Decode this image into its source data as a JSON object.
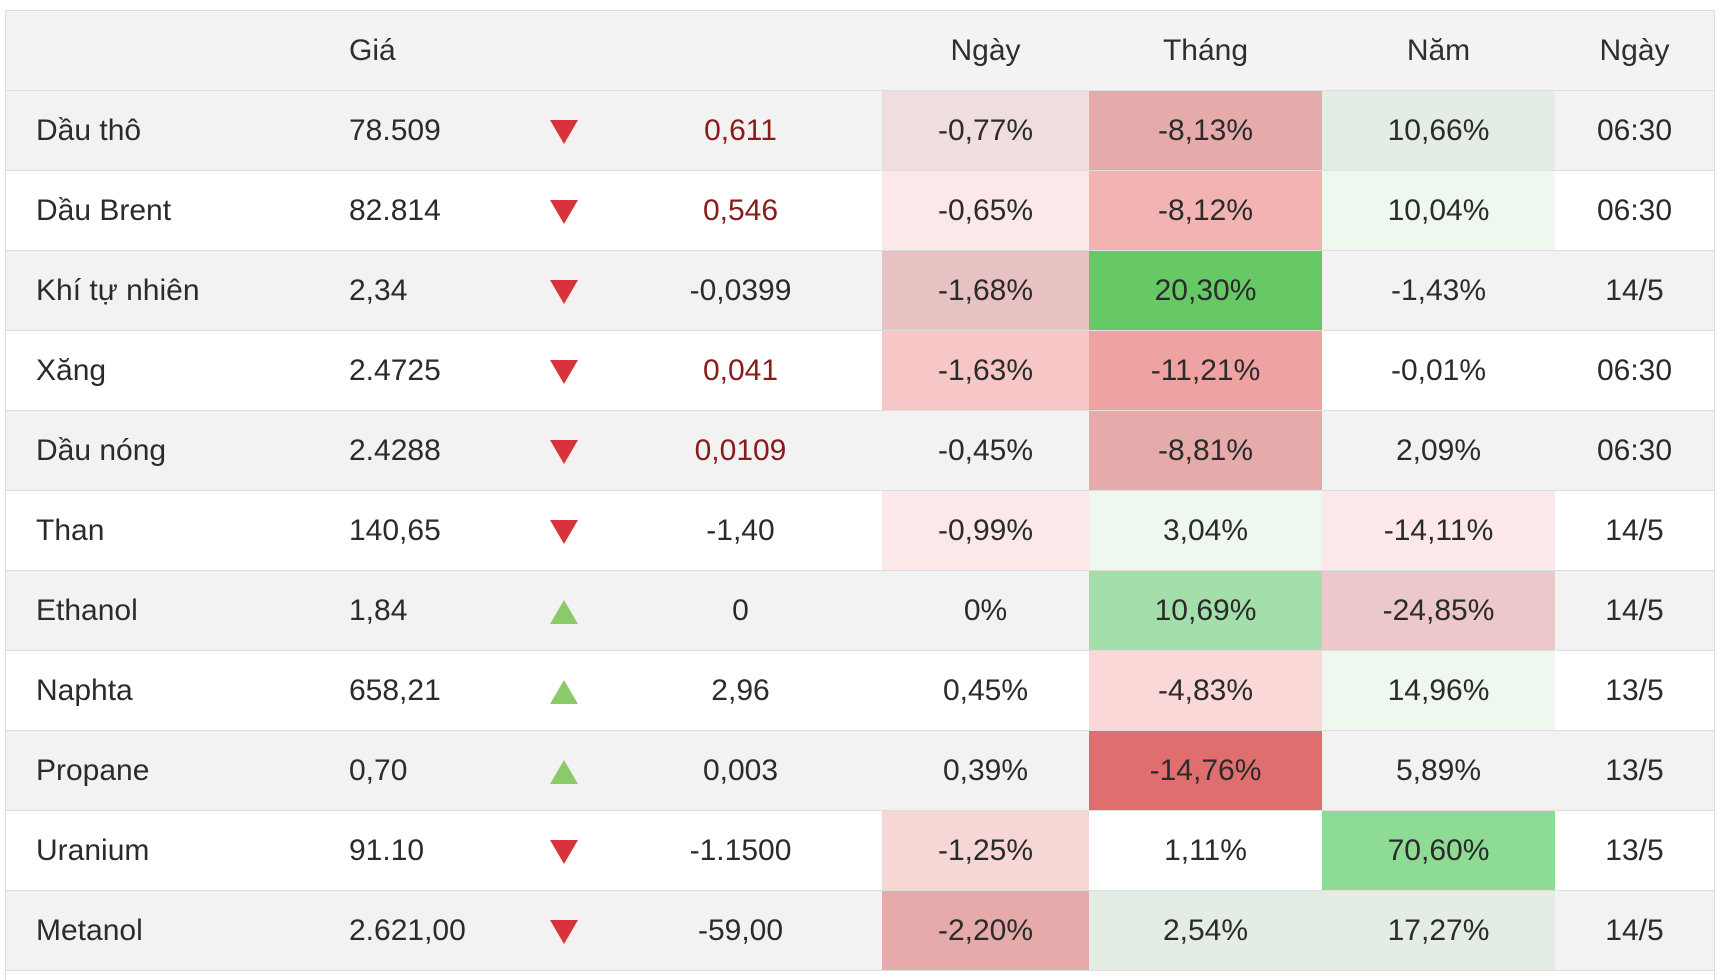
{
  "columns": {
    "name": "",
    "price": "Giá",
    "arrow": "",
    "change": "",
    "day": "Ngày",
    "month": "Tháng",
    "year": "Năm",
    "time": "Ngày"
  },
  "colors": {
    "down_arrow": "#d9323a",
    "up_arrow": "#8cc96a",
    "negative_change_text": "#8b1a1a"
  },
  "rows": [
    {
      "name": "Dầu thô",
      "price": "78.509",
      "direction": "down-arrow-icon",
      "change": "0,611",
      "change_negative_color": true,
      "day": "-0,77%",
      "day_bg": "#f0dede",
      "month": "-8,13%",
      "month_bg": "#e6aaaa",
      "year": "10,66%",
      "year_bg": "#e3ede3",
      "time": "06:30"
    },
    {
      "name": "Dầu Brent",
      "price": "82.814",
      "direction": "down-arrow-icon",
      "change": "0,546",
      "change_negative_color": true,
      "day": "-0,65%",
      "day_bg": "#fce8e8",
      "month": "-8,12%",
      "month_bg": "#f3b3b3",
      "year": "10,04%",
      "year_bg": "#eef8ee",
      "time": "06:30"
    },
    {
      "name": "Khí tự nhiên",
      "price": "2,34",
      "direction": "down-arrow-icon",
      "change": "-0,0399",
      "change_negative_color": false,
      "day": "-1,68%",
      "day_bg": "#e8c2c2",
      "month": "20,30%",
      "month_bg": "#66c966",
      "year": "-1,43%",
      "year_bg": "",
      "time": "14/5"
    },
    {
      "name": "Xăng",
      "price": "2.4725",
      "direction": "down-arrow-icon",
      "change": "0,041",
      "change_negative_color": true,
      "day": "-1,63%",
      "day_bg": "#f7c6c6",
      "month": "-11,21%",
      "month_bg": "#efa2a2",
      "year": "-0,01%",
      "year_bg": "",
      "time": "06:30"
    },
    {
      "name": "Dầu nóng",
      "price": "2.4288",
      "direction": "down-arrow-icon",
      "change": "0,0109",
      "change_negative_color": true,
      "day": "-0,45%",
      "day_bg": "",
      "month": "-8,81%",
      "month_bg": "#e6aaaa",
      "year": "2,09%",
      "year_bg": "",
      "time": "06:30"
    },
    {
      "name": "Than",
      "price": "140,65",
      "direction": "down-arrow-icon",
      "change": "-1,40",
      "change_negative_color": false,
      "day": "-0,99%",
      "day_bg": "#fce8e8",
      "month": "3,04%",
      "month_bg": "#eef8ee",
      "year": "-14,11%",
      "year_bg": "#fce8e8",
      "time": "14/5"
    },
    {
      "name": "Ethanol",
      "price": "1,84",
      "direction": "up-arrow-icon",
      "change": "0",
      "change_negative_color": false,
      "day": "0%",
      "day_bg": "",
      "month": "10,69%",
      "month_bg": "#a4deaa",
      "year": "-24,85%",
      "year_bg": "#ecc8ca",
      "time": "14/5"
    },
    {
      "name": "Naphta",
      "price": "658,21",
      "direction": "up-arrow-icon",
      "change": "2,96",
      "change_negative_color": false,
      "day": "0,45%",
      "day_bg": "",
      "month": "-4,83%",
      "month_bg": "#fad8d8",
      "year": "14,96%",
      "year_bg": "#eef8ee",
      "time": "13/5"
    },
    {
      "name": "Propane",
      "price": "0,70",
      "direction": "up-arrow-icon",
      "change": "0,003",
      "change_negative_color": false,
      "day": "0,39%",
      "day_bg": "",
      "month": "-14,76%",
      "month_bg": "#e06e6e",
      "year": "5,89%",
      "year_bg": "",
      "time": "13/5"
    },
    {
      "name": "Uranium",
      "price": "91.10",
      "direction": "down-arrow-icon",
      "change": "-1.1500",
      "change_negative_color": false,
      "day": "-1,25%",
      "day_bg": "#f7d6d6",
      "month": "1,11%",
      "month_bg": "",
      "year": "70,60%",
      "year_bg": "#8edc94",
      "time": "13/5"
    },
    {
      "name": "Metanol",
      "price": "2.621,00",
      "direction": "down-arrow-icon",
      "change": "-59,00",
      "change_negative_color": false,
      "day": "-2,20%",
      "day_bg": "#e6aaaa",
      "month": "2,54%",
      "month_bg": "#e3ede3",
      "year": "17,27%",
      "year_bg": "#e3ede3",
      "time": "14/5"
    }
  ]
}
